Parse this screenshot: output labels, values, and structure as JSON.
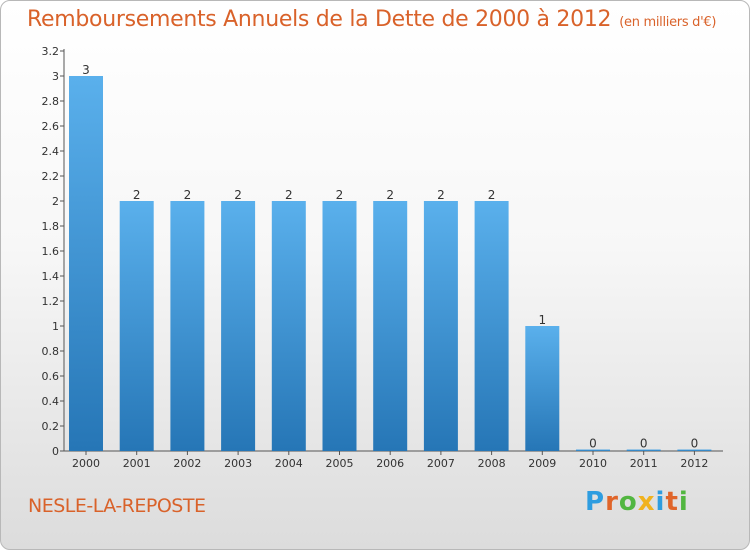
{
  "header": {
    "title": "Remboursements Annuels de la Dette de 2000 à 2012",
    "subtitle": "(en milliers d'€)"
  },
  "footer": {
    "location": "NESLE-LA-REPOSTE",
    "logo": [
      "P",
      "r",
      "o",
      "x",
      "i",
      "t",
      "i"
    ]
  },
  "colors": {
    "accent": "#d9622a",
    "bar_top": "#5ab0ec",
    "bar_bottom": "#2676b6",
    "logo": [
      "#2e9de0",
      "#e0652a",
      "#52b640",
      "#f0b21e",
      "#2e9de0",
      "#e0652a",
      "#52b640"
    ]
  },
  "chart_data": {
    "type": "bar",
    "title": "Remboursements Annuels de la Dette de 2000 à 2012",
    "xlabel": "",
    "ylabel": "",
    "ylim": [
      0,
      3.2
    ],
    "yticks": [
      "0",
      "0.2",
      "0.4",
      "0.6",
      "0.8",
      "1",
      "1.2",
      "1.4",
      "1.6",
      "1.8",
      "2",
      "2.2",
      "2.4",
      "2.6",
      "2.8",
      "3",
      "3.2"
    ],
    "categories": [
      "2000",
      "2001",
      "2002",
      "2003",
      "2004",
      "2005",
      "2006",
      "2007",
      "2008",
      "2009",
      "2010",
      "2011",
      "2012"
    ],
    "values": [
      3,
      2,
      2,
      2,
      2,
      2,
      2,
      2,
      2,
      1,
      0,
      0,
      0
    ],
    "labels": [
      "3",
      "2",
      "2",
      "2",
      "2",
      "2",
      "2",
      "2",
      "2",
      "1",
      "0",
      "0",
      "0"
    ]
  }
}
